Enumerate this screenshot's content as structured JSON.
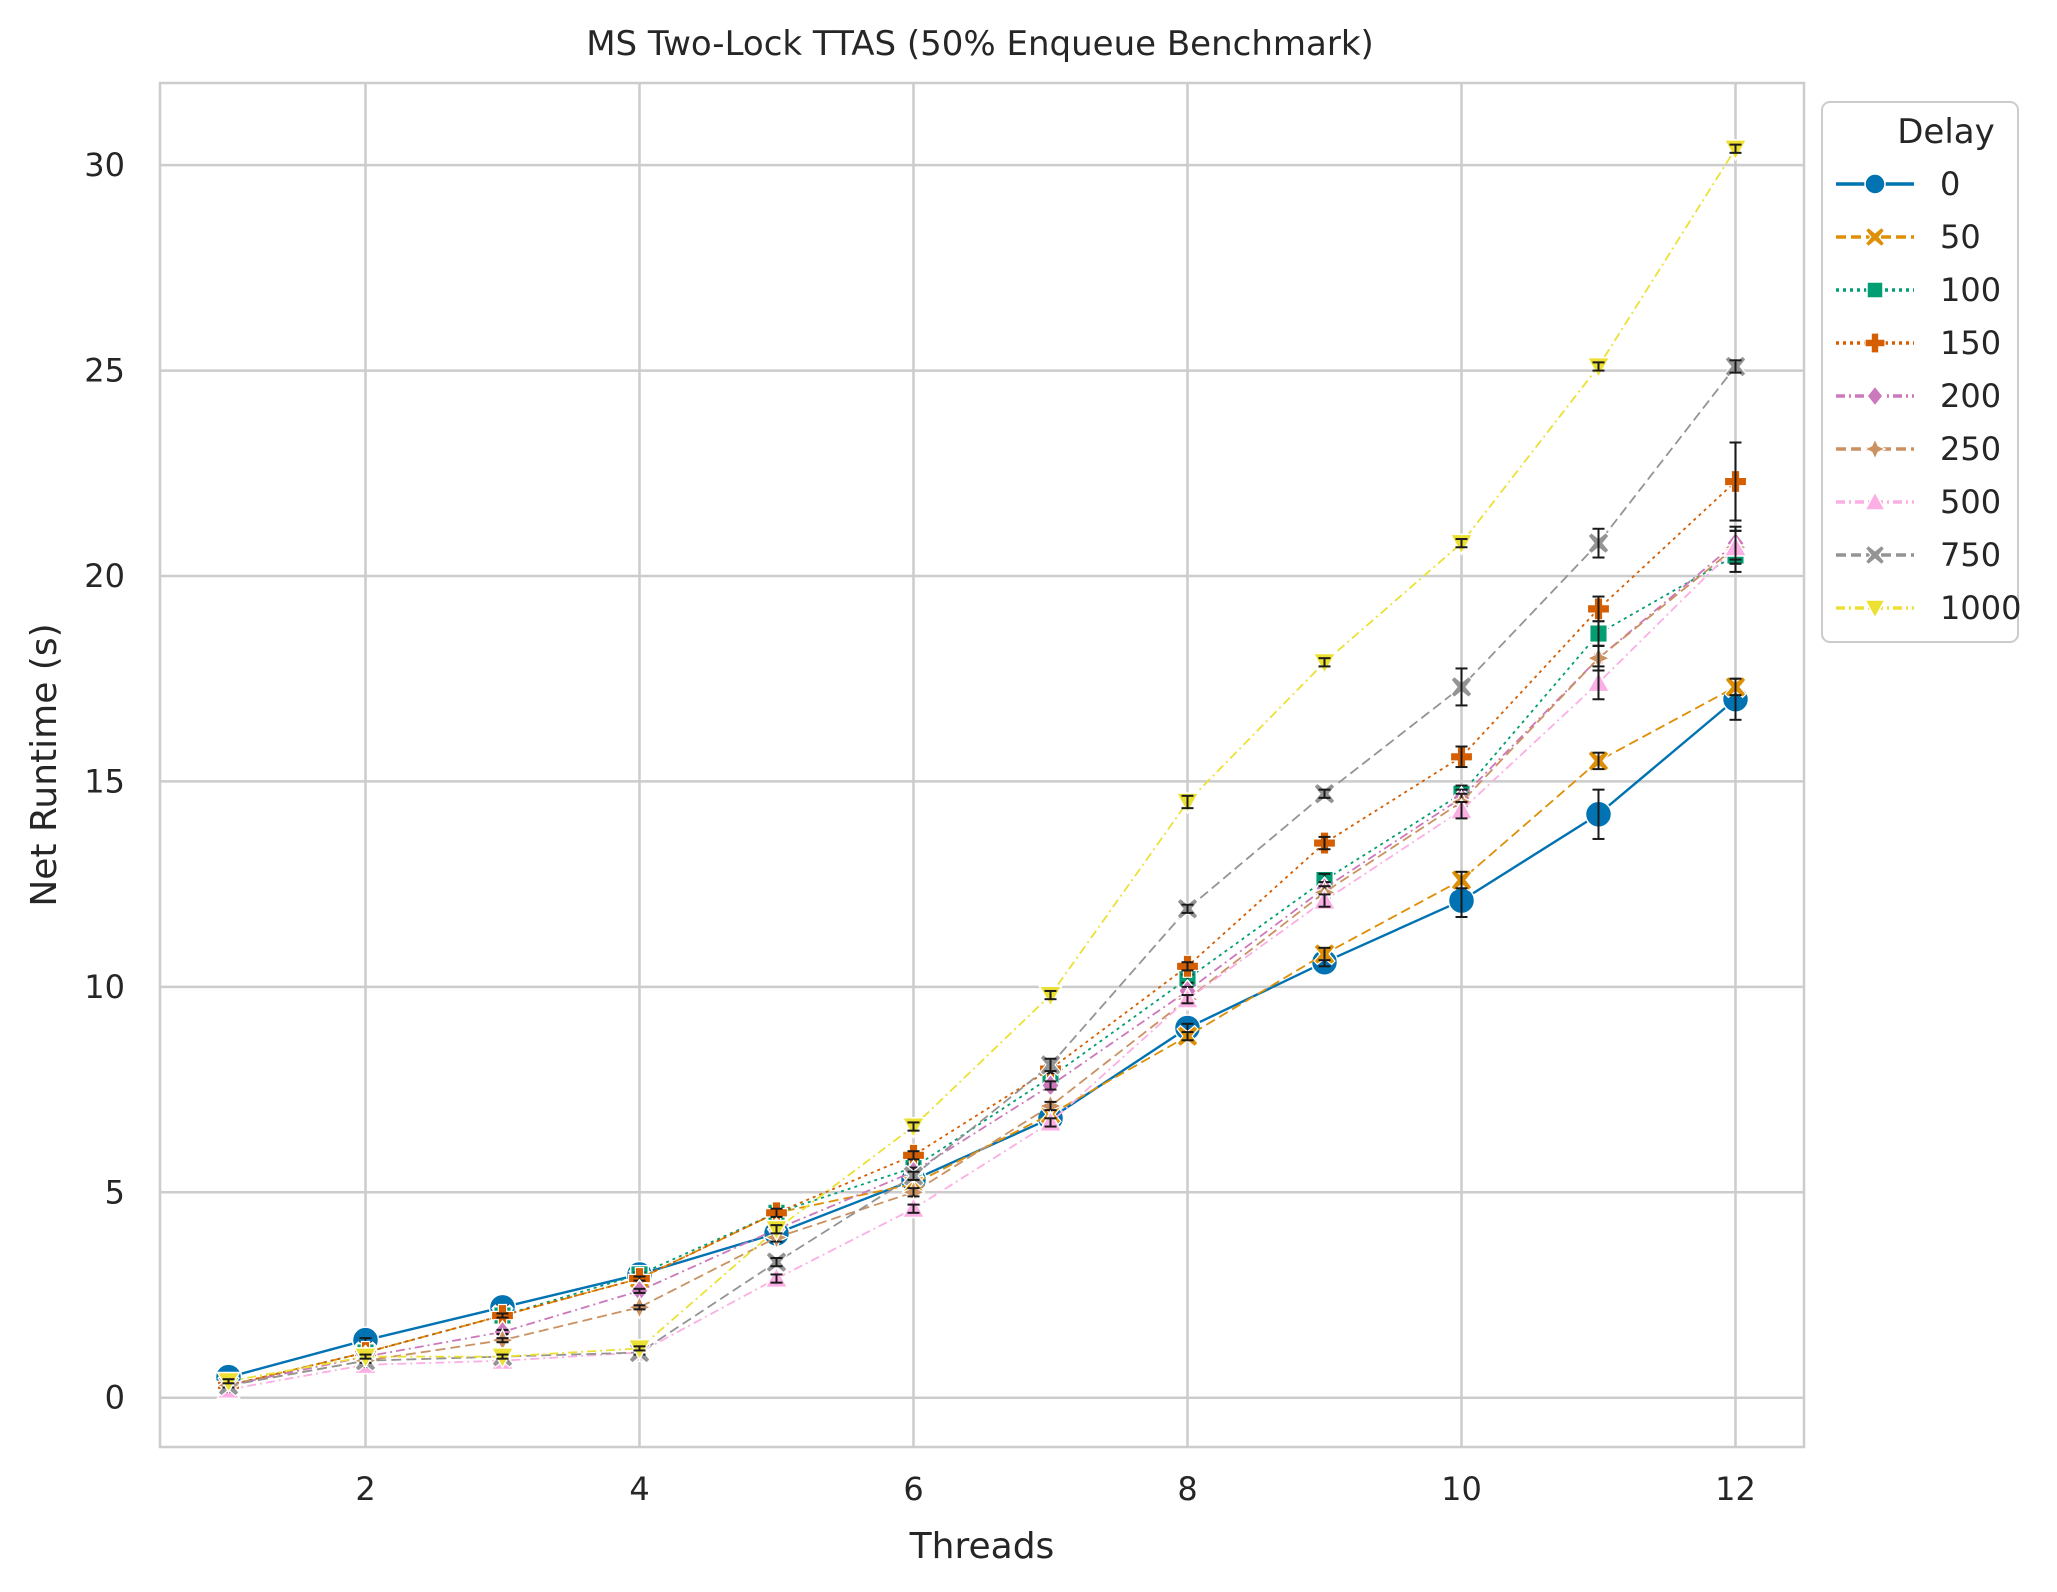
{
  "chart_data": {
    "type": "line",
    "title": "MS Two-Lock TTAS (50% Enqueue Benchmark)",
    "xlabel": "Threads",
    "ylabel": "Net Runtime (s)",
    "xlim": [
      0.5,
      12.5
    ],
    "ylim": [
      -1.2,
      32
    ],
    "xticks": [
      2,
      4,
      6,
      8,
      10,
      12
    ],
    "yticks": [
      0,
      5,
      10,
      15,
      20,
      25,
      30
    ],
    "grid": true,
    "legend": {
      "title": "Delay",
      "placement": "outside-top-right"
    },
    "x": [
      1,
      2,
      3,
      4,
      5,
      6,
      7,
      8,
      9,
      10,
      11,
      12
    ],
    "series": [
      {
        "name": "0",
        "color": "#0173b2",
        "marker": "circle",
        "dash": "solid",
        "values": [
          0.5,
          1.4,
          2.2,
          3.0,
          4.0,
          5.3,
          6.8,
          9.0,
          10.6,
          12.1,
          14.2,
          17.0
        ],
        "err": [
          0.05,
          0.05,
          0.05,
          0.05,
          0.05,
          0.1,
          0.1,
          0.1,
          0.1,
          0.4,
          0.6,
          0.5
        ]
      },
      {
        "name": "50",
        "color": "#de8f05",
        "marker": "x",
        "dash": "dashed",
        "values": [
          0.3,
          1.1,
          2.0,
          2.9,
          4.5,
          5.2,
          6.9,
          8.8,
          10.8,
          12.6,
          15.5,
          17.3
        ],
        "err": [
          0.05,
          0.05,
          0.05,
          0.05,
          0.1,
          0.1,
          0.1,
          0.1,
          0.15,
          0.2,
          0.2,
          0.2
        ]
      },
      {
        "name": "100",
        "color": "#029e73",
        "marker": "square",
        "dash": "dotted",
        "values": [
          0.3,
          1.1,
          2.0,
          3.0,
          4.5,
          5.6,
          7.8,
          10.2,
          12.6,
          14.7,
          18.6,
          20.5
        ],
        "err": [
          0.05,
          0.05,
          0.05,
          0.05,
          0.1,
          0.1,
          0.1,
          0.1,
          0.15,
          0.2,
          0.3,
          0.4
        ]
      },
      {
        "name": "150",
        "color": "#d55e00",
        "marker": "plus",
        "dash": "dotted",
        "values": [
          0.3,
          1.1,
          2.0,
          2.9,
          4.5,
          5.9,
          8.0,
          10.5,
          13.5,
          15.6,
          19.2,
          22.3
        ],
        "err": [
          0.05,
          0.05,
          0.05,
          0.05,
          0.1,
          0.1,
          0.1,
          0.1,
          0.15,
          0.25,
          0.3,
          0.95
        ]
      },
      {
        "name": "200",
        "color": "#cc78bc",
        "marker": "diamond",
        "dash": "dashdot",
        "values": [
          0.3,
          1.0,
          1.6,
          2.6,
          4.1,
          5.5,
          7.6,
          9.9,
          12.4,
          14.6,
          18.0,
          20.8
        ],
        "err": [
          0.05,
          0.05,
          0.05,
          0.05,
          0.1,
          0.1,
          0.1,
          0.1,
          0.15,
          0.2,
          0.3,
          0.4
        ]
      },
      {
        "name": "250",
        "color": "#ca9161",
        "marker": "star",
        "dash": "dashed",
        "values": [
          0.3,
          0.9,
          1.4,
          2.2,
          3.9,
          5.0,
          7.1,
          9.7,
          12.3,
          14.5,
          18.0,
          20.7
        ],
        "err": [
          0.05,
          0.05,
          0.05,
          0.05,
          0.1,
          0.1,
          0.1,
          0.1,
          0.15,
          0.2,
          0.3,
          0.4
        ]
      },
      {
        "name": "500",
        "color": "#fbafe4",
        "marker": "triangle-up",
        "dash": "dashdot",
        "values": [
          0.2,
          0.8,
          0.9,
          1.1,
          2.9,
          4.6,
          6.7,
          9.7,
          12.1,
          14.3,
          17.4,
          20.7
        ],
        "err": [
          0.05,
          0.05,
          0.05,
          0.05,
          0.1,
          0.1,
          0.1,
          0.1,
          0.15,
          0.2,
          0.4,
          0.4
        ]
      },
      {
        "name": "750",
        "color": "#949494",
        "marker": "x",
        "dash": "dashed",
        "values": [
          0.3,
          0.9,
          1.0,
          1.1,
          3.3,
          5.4,
          8.1,
          11.9,
          14.7,
          17.3,
          20.8,
          25.1
        ],
        "err": [
          0.05,
          0.05,
          0.05,
          0.05,
          0.1,
          0.1,
          0.15,
          0.1,
          0.1,
          0.45,
          0.35,
          0.15
        ]
      },
      {
        "name": "1000",
        "color": "#ece133",
        "marker": "triangle-down",
        "dash": "dashdot",
        "values": [
          0.4,
          1.0,
          1.0,
          1.2,
          4.1,
          6.6,
          9.8,
          14.5,
          17.9,
          20.8,
          25.1,
          30.4
        ],
        "err": [
          0.05,
          0.05,
          0.05,
          0.05,
          0.1,
          0.1,
          0.1,
          0.15,
          0.1,
          0.1,
          0.1,
          0.1
        ]
      }
    ]
  }
}
